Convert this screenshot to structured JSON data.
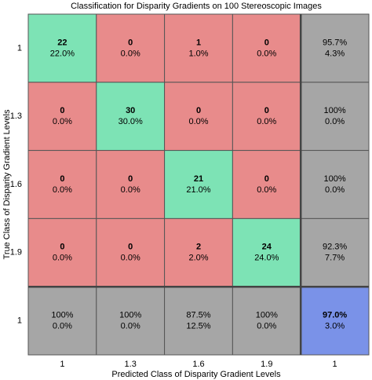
{
  "chart_data": {
    "type": "confusion_matrix",
    "title": "Classification for Disparity Gradients on 100 Stereoscopic Images",
    "x_label": "Predicted Class of Disparity Gradient Levels",
    "y_label": "True Class of Disparity Gradient Levels",
    "x_categories": [
      "1",
      "1.3",
      "1.6",
      "1.9",
      "1"
    ],
    "y_categories": [
      "1",
      "1.3",
      "1.6",
      "1.9",
      "1"
    ],
    "values": [
      [
        22,
        0,
        1,
        0
      ],
      [
        0,
        30,
        0,
        0
      ],
      [
        0,
        0,
        21,
        0
      ],
      [
        0,
        0,
        2,
        24
      ]
    ],
    "value_labels": [
      [
        "22.0%",
        "0.0%",
        "1.0%",
        "0.0%"
      ],
      [
        "0.0%",
        "30.0%",
        "0.0%",
        "0.0%"
      ],
      [
        "0.0%",
        "0.0%",
        "21.0%",
        "0.0%"
      ],
      [
        "0.0%",
        "0.0%",
        "2.0%",
        "24.0%"
      ]
    ],
    "row_summary": [
      [
        "95.7%",
        "4.3%"
      ],
      [
        "100%",
        "0.0%"
      ],
      [
        "100%",
        "0.0%"
      ],
      [
        "92.3%",
        "7.7%"
      ]
    ],
    "col_summary": [
      [
        "100%",
        "0.0%"
      ],
      [
        "100%",
        "0.0%"
      ],
      [
        "87.5%",
        "12.5%"
      ],
      [
        "100%",
        "0.0%"
      ]
    ],
    "overall": [
      "97.0%",
      "3.0%"
    ],
    "colors": {
      "correct": "#7de3b5",
      "incorrect": "#e88b8b",
      "summary": "#a6a6a6",
      "overall": "#7a92e8"
    }
  }
}
